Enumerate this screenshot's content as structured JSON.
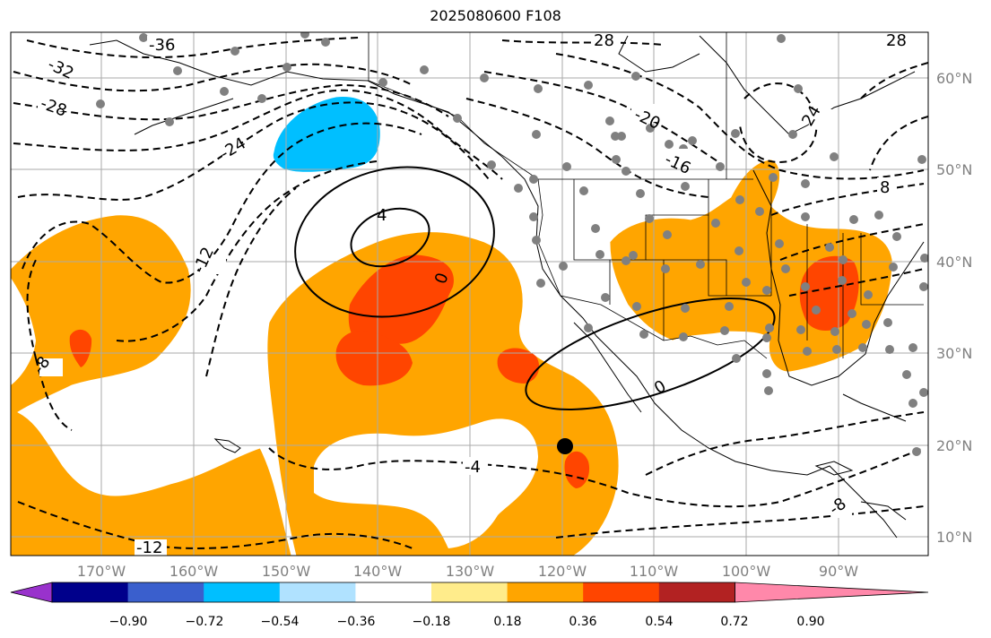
{
  "title": "2025080600 F108",
  "lon_labels": [
    "170°W",
    "160°W",
    "150°W",
    "140°W",
    "130°W",
    "120°W",
    "110°W",
    "100°W",
    "90°W"
  ],
  "lat_labels": [
    "60°N",
    "50°N",
    "40°N",
    "30°N",
    "20°N",
    "10°N"
  ],
  "contour_labels": {
    "neg_36": "-36",
    "neg_32": "-32",
    "neg_28a": "-28",
    "neg_28b": "28",
    "neg_28c": "28",
    "neg_24": "-24",
    "neg_24b": "24",
    "neg_20": "-20",
    "neg_16": "-16",
    "neg_12": "-12",
    "neg_12b": "-12",
    "neg_8": "-8",
    "neg_8b": "8",
    "neg_8c": "-8",
    "neg_4": "-4",
    "pos_4": "4",
    "zero_a": "0",
    "zero_b": "0"
  },
  "colorbar": {
    "ticks": [
      "−0.90",
      "−0.72",
      "−0.54",
      "−0.36",
      "−0.18",
      "0.18",
      "0.36",
      "0.54",
      "0.72",
      "0.90"
    ],
    "colors": [
      "#9932cc",
      "#00008b",
      "#3a5fcd",
      "#00bfff",
      "#b0e2ff",
      "#ffffff",
      "#ffec8b",
      "#ffa500",
      "#ff4500",
      "#b22222",
      "#ff88aa"
    ]
  },
  "colors": {
    "orange": "#ffa500",
    "red": "#ff4500",
    "blue": "#00bfff",
    "station": "#808080"
  }
}
